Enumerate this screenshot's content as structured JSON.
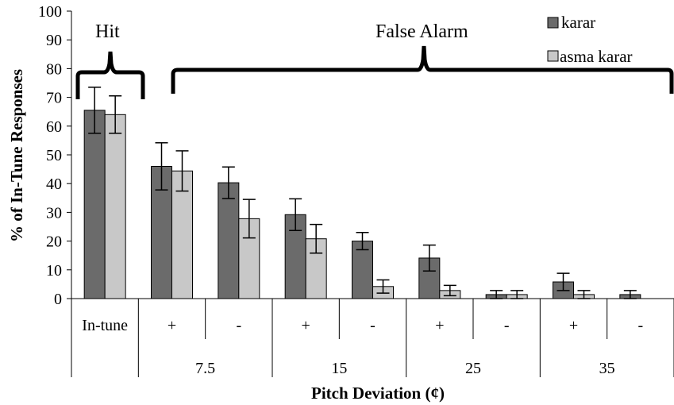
{
  "chart_data": {
    "type": "bar",
    "title": "",
    "ylabel": "% of In-Tune Responses",
    "xlabel": "Pitch Deviation (¢)",
    "ylim": [
      0,
      100
    ],
    "yticks": [
      0,
      10,
      20,
      30,
      40,
      50,
      60,
      70,
      80,
      90,
      100
    ],
    "categories": [
      "In-tune",
      "+",
      "-",
      "+",
      "-",
      "+",
      "-",
      "+",
      "-"
    ],
    "groups": [
      {
        "label": "",
        "span": 1
      },
      {
        "label": "7.5",
        "span": 2
      },
      {
        "label": "15",
        "span": 2
      },
      {
        "label": "25",
        "span": 2
      },
      {
        "label": "35",
        "span": 2
      }
    ],
    "series": [
      {
        "name": "karar",
        "color": "#6b6b6b",
        "values": [
          65.5,
          46,
          40.3,
          29.2,
          20,
          14.1,
          1.4,
          5.8,
          1.4
        ],
        "errors": [
          8,
          8.2,
          5.5,
          5.5,
          3,
          4.5,
          1.4,
          3,
          1.4
        ]
      },
      {
        "name": "asma karar",
        "color": "#c8c8c8",
        "values": [
          64,
          44.4,
          27.8,
          20.8,
          4.2,
          2.8,
          1.4,
          1.4,
          0
        ],
        "errors": [
          6.5,
          7,
          6.7,
          5,
          2.3,
          1.8,
          1.4,
          1.4,
          0
        ]
      }
    ],
    "annotations": [
      {
        "text": "Hit",
        "covers_categories": [
          0,
          0
        ]
      },
      {
        "text": "False Alarm",
        "covers_categories": [
          1,
          8
        ]
      }
    ],
    "legend": {
      "placement": "top-right"
    },
    "grid": false
  }
}
